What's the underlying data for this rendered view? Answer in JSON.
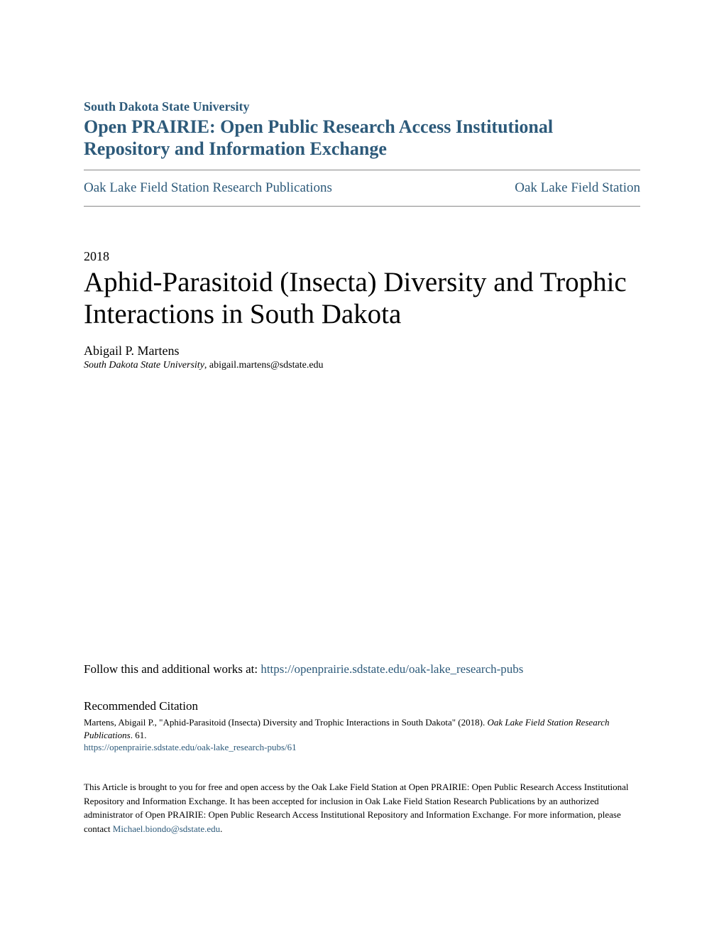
{
  "header": {
    "institution": "South Dakota State University",
    "repository": "Open PRAIRIE: Open Public Research Access Institutional Repository and Information Exchange"
  },
  "nav": {
    "left": "Oak Lake Field Station Research Publications",
    "right": "Oak Lake Field Station"
  },
  "paper": {
    "year": "2018",
    "title": "Aphid-Parasitoid (Insecta) Diversity and Trophic Interactions in South Dakota",
    "author_name": "Abigail P. Martens",
    "author_institution": "South Dakota State University",
    "author_email": ", abigail.martens@sdstate.edu"
  },
  "follow": {
    "prefix": "Follow this and additional works at: ",
    "url": "https://openprairie.sdstate.edu/oak-lake_research-pubs"
  },
  "citation": {
    "heading": "Recommended Citation",
    "text_before_italic": "Martens, Abigail P., \"Aphid-Parasitoid (Insecta) Diversity and Trophic Interactions in South Dakota\" (2018). ",
    "italic_text": "Oak Lake Field Station Research Publications",
    "text_after_italic": ". 61.",
    "url": "https://openprairie.sdstate.edu/oak-lake_research-pubs/61"
  },
  "footer": {
    "text": "This Article is brought to you for free and open access by the Oak Lake Field Station at Open PRAIRIE: Open Public Research Access Institutional Repository and Information Exchange. It has been accepted for inclusion in Oak Lake Field Station Research Publications by an authorized administrator of Open PRAIRIE: Open Public Research Access Institutional Repository and Information Exchange. For more information, please contact ",
    "contact_email": "Michael.biondo@sdstate.edu",
    "suffix": "."
  },
  "colors": {
    "link_color": "#2d5a7a",
    "text_color": "#000000",
    "divider_color": "#888888",
    "background_color": "#ffffff"
  },
  "typography": {
    "institution_fontsize": 18,
    "repository_fontsize": 26,
    "nav_fontsize": 19,
    "year_fontsize": 18,
    "title_fontsize": 39,
    "author_fontsize": 18,
    "affiliation_fontsize": 14,
    "follow_fontsize": 17,
    "citation_heading_fontsize": 17,
    "citation_text_fontsize": 13,
    "footer_fontsize": 13
  }
}
